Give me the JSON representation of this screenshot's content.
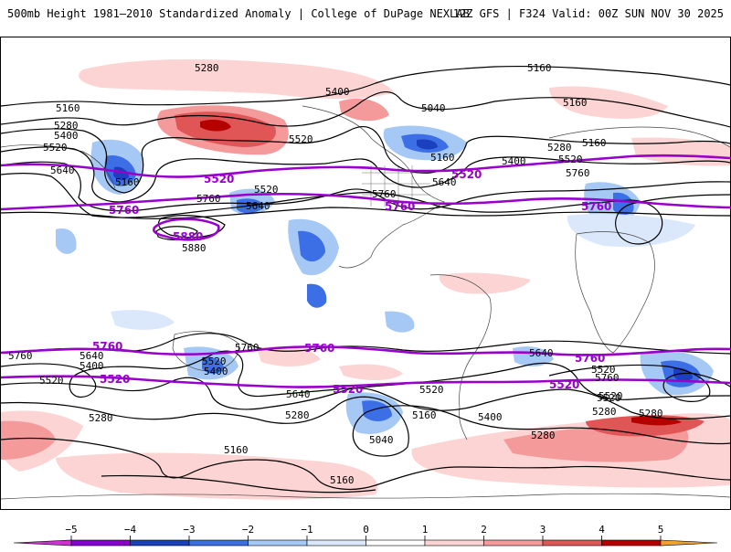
{
  "header": {
    "title_left": "500mb Height 1981–2010 Standardized Anomaly | College of DuPage NEXLAB",
    "title_right": "12Z GFS | F324 Valid: 00Z SUN NOV 30 2025"
  },
  "colorbar": {
    "ticks": [
      "−5",
      "−4",
      "−3",
      "−2",
      "−1",
      "0",
      "1",
      "2",
      "3",
      "4",
      "5"
    ],
    "colors": [
      "#cc33cc",
      "#8800cc",
      "#1a3fbf",
      "#3c6ee6",
      "#a6c8f5",
      "#dbe8fb",
      "#ffffff",
      "#fcd4d4",
      "#f49a9a",
      "#e05555",
      "#b50000",
      "#f0a030",
      "#f5c842"
    ]
  },
  "contours": {
    "black_labels": {
      "l1": "5280",
      "l2": "5160",
      "l3": "5400",
      "l4": "5040",
      "l5": "5160",
      "l6": "5160",
      "l7": "5280",
      "l8": "5400",
      "l9": "5520",
      "l10": "5640",
      "l11": "5160",
      "l12": "5520",
      "l13": "5520",
      "l14": "5760",
      "l15": "5640",
      "l16": "5760",
      "l17": "5160",
      "l18": "5280",
      "l19": "5400",
      "l20": "5160",
      "l21": "5520",
      "l22": "5640",
      "l23": "5760",
      "l24": "5880",
      "l25": "5640",
      "l26": "5400",
      "l27": "5520",
      "l28": "5760",
      "l29": "5400",
      "l30": "5520",
      "l31": "5760",
      "l32": "5640",
      "l33": "5520",
      "l34": "5640",
      "l35": "5520",
      "l36": "5280",
      "l37": "5280",
      "l38": "5160",
      "l39": "5040",
      "l40": "5400",
      "l41": "5280",
      "l42": "5160",
      "l43": "5520",
      "l44": "5760",
      "l45": "5520",
      "l46": "5280",
      "l47": "5280",
      "l48": "5160"
    },
    "purple_labels": {
      "p1": "5520",
      "p2": "5520",
      "p3": "5760",
      "p4": "5760",
      "p5": "5760",
      "p6": "5880",
      "p7": "5760",
      "p8": "5760",
      "p9": "5760",
      "p10": "5520",
      "p11": "5520",
      "p12": "5520"
    }
  }
}
